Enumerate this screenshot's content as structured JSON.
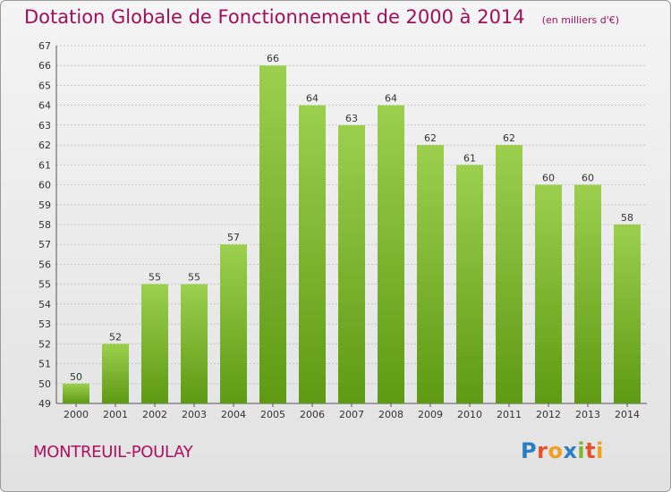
{
  "header": {
    "title": "Dotation Globale de Fonctionnement de 2000 à 2014",
    "subtitle": "(en milliers d'€)"
  },
  "footer": {
    "commune": "MONTREUIL-POULAY",
    "logo": [
      "P",
      "r",
      "o",
      "x",
      "i",
      "t",
      "i"
    ]
  },
  "colors": {
    "title": "#a0105a",
    "bar_top": "#9ccf4e",
    "bar_bottom": "#5e9a14"
  },
  "chart_data": {
    "type": "bar",
    "title": "Dotation Globale de Fonctionnement de 2000 à 2014",
    "subtitle": "(en milliers d'€)",
    "categories": [
      "2000",
      "2001",
      "2002",
      "2003",
      "2004",
      "2005",
      "2006",
      "2007",
      "2008",
      "2009",
      "2010",
      "2011",
      "2012",
      "2013",
      "2014"
    ],
    "values": [
      50,
      52,
      55,
      55,
      57,
      66,
      64,
      63,
      64,
      62,
      61,
      62,
      60,
      60,
      58
    ],
    "xlabel": "",
    "ylabel": "",
    "ylim": [
      49,
      67
    ],
    "yticks": [
      49,
      50,
      51,
      52,
      53,
      54,
      55,
      56,
      57,
      58,
      59,
      60,
      61,
      62,
      63,
      64,
      65,
      66,
      67
    ],
    "grid": true
  }
}
